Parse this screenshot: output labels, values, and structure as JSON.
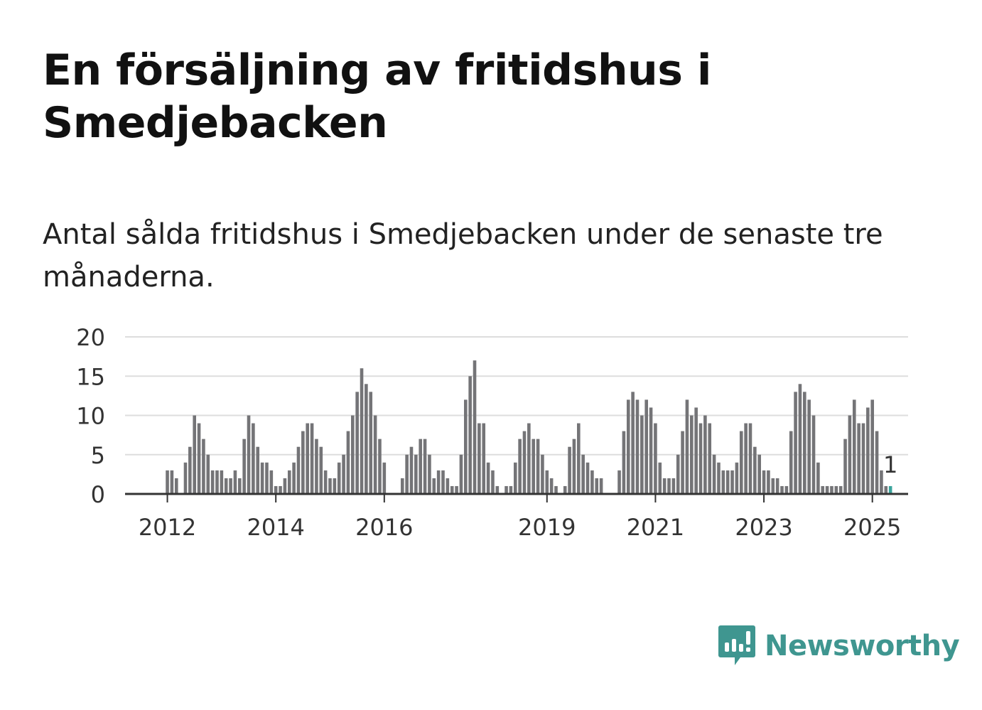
{
  "title": "En försäljning av fritidshus i Smedjebacken",
  "subtitle": "Antal sålda fritidshus i Smedjebacken under de senaste tre månaderna.",
  "logo": {
    "name": "Newsworthy",
    "icon": "newsworthy-logo-icon"
  },
  "colors": {
    "bar": "#747477",
    "highlight": "#3aa49c",
    "grid": "#dddddd",
    "axis": "#333333"
  },
  "chart_data": {
    "type": "bar",
    "title": "",
    "xlabel": "",
    "ylabel": "",
    "ylim": [
      0,
      20
    ],
    "yticks": [
      0,
      5,
      10,
      15,
      20
    ],
    "grid": true,
    "xtick_labels": [
      "2012",
      "2014",
      "2016",
      "2019",
      "2021",
      "2023",
      "2025"
    ],
    "start": "2011-04",
    "frequency": "monthly",
    "values": [
      0,
      0,
      0,
      0,
      0,
      0,
      0,
      0,
      0,
      3,
      3,
      2,
      0,
      4,
      6,
      10,
      9,
      7,
      5,
      3,
      3,
      3,
      2,
      2,
      3,
      2,
      7,
      10,
      9,
      6,
      4,
      4,
      3,
      1,
      1,
      2,
      3,
      4,
      6,
      8,
      9,
      9,
      7,
      6,
      3,
      2,
      2,
      4,
      5,
      8,
      10,
      13,
      16,
      14,
      13,
      10,
      7,
      4,
      0,
      0,
      0,
      2,
      5,
      6,
      5,
      7,
      7,
      5,
      2,
      3,
      3,
      2,
      1,
      1,
      5,
      12,
      15,
      17,
      9,
      9,
      4,
      3,
      1,
      0,
      1,
      1,
      4,
      7,
      8,
      9,
      7,
      7,
      5,
      3,
      2,
      1,
      0,
      1,
      6,
      7,
      9,
      5,
      4,
      3,
      2,
      2,
      0,
      0,
      0,
      3,
      8,
      12,
      13,
      12,
      10,
      12,
      11,
      9,
      4,
      2,
      2,
      2,
      5,
      8,
      12,
      10,
      11,
      9,
      10,
      9,
      5,
      4,
      3,
      3,
      3,
      4,
      8,
      9,
      9,
      6,
      5,
      3,
      3,
      2,
      2,
      1,
      1,
      8,
      13,
      14,
      13,
      12,
      10,
      4,
      1,
      1,
      1,
      1,
      1,
      7,
      10,
      12,
      9,
      9,
      11,
      12,
      8,
      3,
      1,
      1
    ],
    "highlight_last": 1,
    "annotation": {
      "text": "1"
    }
  }
}
